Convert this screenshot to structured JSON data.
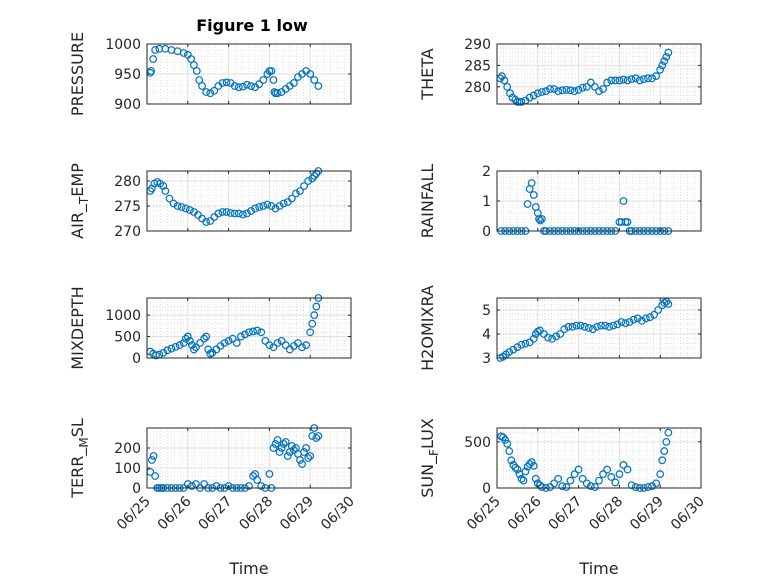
{
  "figure": {
    "title": "Figure 1 low"
  },
  "colors": {
    "marker": "#0072bd",
    "axis": "#262626",
    "grid": "#dfdfdf",
    "minor_grid": "#cfcfcf",
    "background": "#ffffff"
  },
  "chart_data": [
    {
      "type": "scatter",
      "ylabel": "PRESSURE",
      "xlabel": "",
      "title": "Figure 1 low",
      "x_tick_labels_shown": false,
      "yticks": [
        900,
        950,
        1000
      ],
      "ylim": [
        900,
        1000
      ],
      "xlim": [
        "06/25",
        "06/30"
      ],
      "grid": true,
      "series": [
        {
          "x": [
            25.08,
            25.1,
            25.15,
            25.2,
            25.3,
            25.45,
            25.6,
            25.75,
            25.9,
            26.0,
            26.08,
            26.15,
            26.22,
            26.28,
            26.35,
            26.45,
            26.55,
            26.65,
            26.75,
            26.85,
            26.95,
            27.05,
            27.15,
            27.25,
            27.35,
            27.45,
            27.55,
            27.65,
            27.75,
            27.85,
            27.95,
            28.0,
            28.05,
            28.1,
            28.12,
            28.15,
            28.2,
            28.3,
            28.4,
            28.5,
            28.6,
            28.7,
            28.8,
            28.9,
            29.0,
            29.1,
            29.2
          ],
          "y": [
            952,
            955,
            975,
            990,
            992,
            992,
            990,
            988,
            985,
            982,
            975,
            965,
            955,
            940,
            930,
            920,
            918,
            922,
            930,
            935,
            936,
            935,
            930,
            928,
            929,
            932,
            930,
            928,
            933,
            940,
            950,
            955,
            955,
            940,
            920,
            918,
            918,
            920,
            925,
            930,
            935,
            945,
            950,
            955,
            950,
            940,
            930
          ]
        }
      ]
    },
    {
      "type": "scatter",
      "ylabel": "THETA",
      "xlabel": "",
      "x_tick_labels_shown": false,
      "yticks": [
        280,
        285,
        290
      ],
      "ylim": [
        276,
        290
      ],
      "xlim": [
        "06/25",
        "06/30"
      ],
      "grid": true,
      "series": [
        {
          "x": [
            25.08,
            25.12,
            25.18,
            25.25,
            25.32,
            25.38,
            25.45,
            25.5,
            25.55,
            25.6,
            25.7,
            25.8,
            25.9,
            26.0,
            26.1,
            26.2,
            26.3,
            26.4,
            26.5,
            26.6,
            26.7,
            26.8,
            26.9,
            27.0,
            27.1,
            27.2,
            27.3,
            27.4,
            27.5,
            27.6,
            27.7,
            27.8,
            27.9,
            28.0,
            28.1,
            28.2,
            28.3,
            28.4,
            28.5,
            28.6,
            28.7,
            28.8,
            28.9,
            29.0,
            29.05,
            29.1,
            29.15,
            29.2
          ],
          "y": [
            282,
            282.5,
            281.5,
            280,
            278.5,
            277.5,
            277,
            276.5,
            276.5,
            276.5,
            276.8,
            277.5,
            278,
            278.5,
            278.8,
            279,
            279.5,
            279.5,
            279,
            279.2,
            279.3,
            279.2,
            279,
            279.3,
            279.8,
            280,
            281,
            280,
            279,
            279.5,
            281,
            281.5,
            281.5,
            281.5,
            281.7,
            281.5,
            281.8,
            282,
            281.5,
            281.8,
            282,
            282,
            282.5,
            284,
            285,
            286,
            287,
            288
          ]
        }
      ]
    },
    {
      "type": "scatter",
      "ylabel": "AIR_TEMP",
      "xlabel": "",
      "x_tick_labels_shown": false,
      "yticks": [
        270,
        275,
        280
      ],
      "ylim": [
        270,
        282
      ],
      "xlim": [
        "06/25",
        "06/30"
      ],
      "grid": true,
      "series": [
        {
          "x": [
            25.08,
            25.12,
            25.18,
            25.25,
            25.32,
            25.4,
            25.45,
            25.55,
            25.65,
            25.75,
            25.85,
            25.95,
            26.05,
            26.15,
            26.25,
            26.35,
            26.45,
            26.55,
            26.65,
            26.75,
            26.85,
            26.95,
            27.05,
            27.15,
            27.25,
            27.35,
            27.45,
            27.55,
            27.65,
            27.75,
            27.85,
            27.95,
            28.05,
            28.15,
            28.25,
            28.35,
            28.45,
            28.55,
            28.65,
            28.75,
            28.85,
            28.95,
            29.05,
            29.1,
            29.15,
            29.2
          ],
          "y": [
            278,
            278.5,
            279.5,
            279.8,
            279.5,
            279,
            278,
            276.5,
            275.5,
            275,
            274.8,
            274.5,
            274.2,
            273.8,
            273.2,
            272.5,
            271.8,
            272,
            272.8,
            273.5,
            273.8,
            273.8,
            273.6,
            273.5,
            273.5,
            273.3,
            273.5,
            274,
            274.5,
            274.8,
            275,
            275.3,
            275,
            274.5,
            275,
            275.5,
            275.8,
            276.5,
            277.5,
            278,
            279,
            280,
            280.5,
            281,
            281.5,
            282
          ]
        }
      ]
    },
    {
      "type": "scatter",
      "ylabel": "RAINFALL",
      "xlabel": "",
      "x_tick_labels_shown": false,
      "yticks": [
        0,
        1,
        2
      ],
      "ylim": [
        0,
        2
      ],
      "xlim": [
        "06/25",
        "06/30"
      ],
      "grid": true,
      "series": [
        {
          "x": [
            25.1,
            25.2,
            25.3,
            25.4,
            25.5,
            25.6,
            25.7,
            25.75,
            25.8,
            25.85,
            25.9,
            25.95,
            26.0,
            26.03,
            26.06,
            26.1,
            26.15,
            26.2,
            26.3,
            26.4,
            26.5,
            26.6,
            26.7,
            26.8,
            26.9,
            27.0,
            27.1,
            27.2,
            27.3,
            27.4,
            27.5,
            27.6,
            27.7,
            27.8,
            27.9,
            28.0,
            28.05,
            28.1,
            28.15,
            28.2,
            28.25,
            28.3,
            28.4,
            28.5,
            28.6,
            28.7,
            28.8,
            28.9,
            29.0,
            29.1,
            29.2
          ],
          "y": [
            0,
            0,
            0,
            0,
            0,
            0,
            0,
            0.9,
            1.4,
            1.6,
            1.2,
            0.8,
            0.6,
            0.4,
            0.35,
            0.4,
            0,
            0,
            0,
            0,
            0,
            0,
            0,
            0,
            0,
            0,
            0,
            0,
            0,
            0,
            0,
            0,
            0,
            0,
            0,
            0.3,
            0.3,
            1.0,
            0.3,
            0.3,
            0,
            0,
            0,
            0,
            0,
            0,
            0,
            0,
            0,
            0,
            0
          ]
        }
      ]
    },
    {
      "type": "scatter",
      "ylabel": "MIXDEPTH",
      "xlabel": "",
      "x_tick_labels_shown": false,
      "yticks": [
        0,
        500,
        1000
      ],
      "ylim": [
        0,
        1400
      ],
      "xlim": [
        "06/25",
        "06/30"
      ],
      "grid": true,
      "series": [
        {
          "x": [
            25.08,
            25.15,
            25.22,
            25.3,
            25.4,
            25.5,
            25.6,
            25.7,
            25.8,
            25.9,
            25.95,
            26.0,
            26.05,
            26.1,
            26.15,
            26.2,
            26.3,
            26.4,
            26.45,
            26.5,
            26.55,
            26.6,
            26.7,
            26.8,
            26.9,
            27.0,
            27.1,
            27.2,
            27.3,
            27.4,
            27.5,
            27.6,
            27.7,
            27.8,
            27.9,
            28.0,
            28.1,
            28.2,
            28.3,
            28.4,
            28.5,
            28.6,
            28.7,
            28.8,
            28.9,
            29.0,
            29.05,
            29.1,
            29.15,
            29.2
          ],
          "y": [
            150,
            100,
            60,
            80,
            120,
            180,
            220,
            260,
            300,
            350,
            450,
            500,
            400,
            300,
            200,
            250,
            350,
            450,
            500,
            200,
            100,
            120,
            200,
            280,
            350,
            400,
            450,
            350,
            500,
            550,
            600,
            620,
            640,
            600,
            400,
            300,
            250,
            350,
            400,
            300,
            200,
            280,
            350,
            250,
            300,
            600,
            800,
            1000,
            1200,
            1400
          ]
        }
      ]
    },
    {
      "type": "scatter",
      "ylabel": "H2OMIXRA",
      "xlabel": "",
      "x_tick_labels_shown": false,
      "yticks": [
        3,
        4,
        5
      ],
      "ylim": [
        3,
        5.5
      ],
      "xlim": [
        "06/25",
        "06/30"
      ],
      "grid": true,
      "series": [
        {
          "x": [
            25.08,
            25.15,
            25.22,
            25.3,
            25.4,
            25.5,
            25.6,
            25.7,
            25.8,
            25.9,
            25.95,
            26.0,
            26.05,
            26.15,
            26.25,
            26.35,
            26.45,
            26.55,
            26.65,
            26.75,
            26.85,
            26.95,
            27.05,
            27.15,
            27.25,
            27.35,
            27.45,
            27.55,
            27.65,
            27.75,
            27.85,
            27.95,
            28.05,
            28.15,
            28.25,
            28.35,
            28.45,
            28.55,
            28.65,
            28.75,
            28.85,
            28.95,
            29.05,
            29.1,
            29.15,
            29.2
          ],
          "y": [
            3,
            3.05,
            3.15,
            3.25,
            3.35,
            3.45,
            3.55,
            3.6,
            3.65,
            3.8,
            4.0,
            4.1,
            4.15,
            4.0,
            3.85,
            3.8,
            3.9,
            4.0,
            4.2,
            4.3,
            4.3,
            4.35,
            4.35,
            4.3,
            4.25,
            4.2,
            4.3,
            4.35,
            4.35,
            4.3,
            4.35,
            4.4,
            4.5,
            4.45,
            4.5,
            4.6,
            4.65,
            4.55,
            4.65,
            4.7,
            4.8,
            5.0,
            5.2,
            5.3,
            5.35,
            5.25
          ]
        }
      ]
    },
    {
      "type": "scatter",
      "ylabel": "TERR_MSL",
      "xlabel": "Time",
      "x_tick_labels_shown": true,
      "xticks": [
        "06/25",
        "06/26",
        "06/27",
        "06/28",
        "06/29",
        "06/30"
      ],
      "yticks": [
        0,
        100,
        200
      ],
      "ylim": [
        0,
        300
      ],
      "xlim": [
        "06/25",
        "06/30"
      ],
      "grid": true,
      "series": [
        {
          "x": [
            25.08,
            25.12,
            25.16,
            25.2,
            25.25,
            25.3,
            25.35,
            25.4,
            25.5,
            25.6,
            25.7,
            25.8,
            25.9,
            26.0,
            26.1,
            26.2,
            26.3,
            26.4,
            26.5,
            26.6,
            26.7,
            26.8,
            26.9,
            27.0,
            27.1,
            27.2,
            27.3,
            27.4,
            27.5,
            27.6,
            27.65,
            27.7,
            27.8,
            27.9,
            28.0,
            28.05,
            28.1,
            28.15,
            28.2,
            28.25,
            28.3,
            28.35,
            28.4,
            28.45,
            28.5,
            28.55,
            28.6,
            28.65,
            28.7,
            28.75,
            28.8,
            28.85,
            28.9,
            28.95,
            29.0,
            29.05,
            29.1,
            29.15,
            29.2
          ],
          "y": [
            80,
            140,
            160,
            60,
            0,
            0,
            0,
            0,
            0,
            0,
            0,
            0,
            0,
            20,
            10,
            20,
            0,
            20,
            0,
            0,
            10,
            0,
            0,
            10,
            0,
            0,
            0,
            0,
            10,
            60,
            70,
            40,
            10,
            0,
            70,
            0,
            200,
            220,
            240,
            180,
            200,
            220,
            230,
            160,
            180,
            210,
            190,
            200,
            170,
            140,
            120,
            180,
            200,
            150,
            160,
            260,
            300,
            250,
            260
          ]
        }
      ]
    },
    {
      "type": "scatter",
      "ylabel": "SUN_FLUX",
      "xlabel": "Time",
      "x_tick_labels_shown": true,
      "xticks": [
        "06/25",
        "06/26",
        "06/27",
        "06/28",
        "06/29",
        "06/30"
      ],
      "yticks": [
        0,
        500
      ],
      "ylim": [
        0,
        650
      ],
      "xlim": [
        "06/25",
        "06/30"
      ],
      "grid": true,
      "series": [
        {
          "x": [
            25.1,
            25.15,
            25.2,
            25.25,
            25.3,
            25.35,
            25.4,
            25.45,
            25.5,
            25.55,
            25.6,
            25.65,
            25.7,
            25.75,
            25.8,
            25.85,
            25.9,
            25.95,
            26.0,
            26.05,
            26.1,
            26.2,
            26.3,
            26.4,
            26.5,
            26.6,
            26.7,
            26.8,
            26.9,
            27.0,
            27.1,
            27.2,
            27.3,
            27.4,
            27.5,
            27.6,
            27.7,
            27.8,
            27.9,
            28.0,
            28.1,
            28.2,
            28.3,
            28.4,
            28.5,
            28.6,
            28.7,
            28.8,
            28.9,
            29.0,
            29.05,
            29.1,
            29.15,
            29.2
          ],
          "y": [
            560,
            550,
            520,
            480,
            400,
            300,
            250,
            220,
            200,
            150,
            100,
            80,
            180,
            230,
            260,
            280,
            240,
            100,
            50,
            30,
            10,
            0,
            10,
            50,
            100,
            20,
            10,
            80,
            150,
            200,
            100,
            50,
            20,
            10,
            80,
            150,
            200,
            120,
            60,
            150,
            250,
            200,
            30,
            10,
            0,
            0,
            10,
            20,
            50,
            150,
            300,
            400,
            500,
            600
          ]
        }
      ]
    }
  ]
}
